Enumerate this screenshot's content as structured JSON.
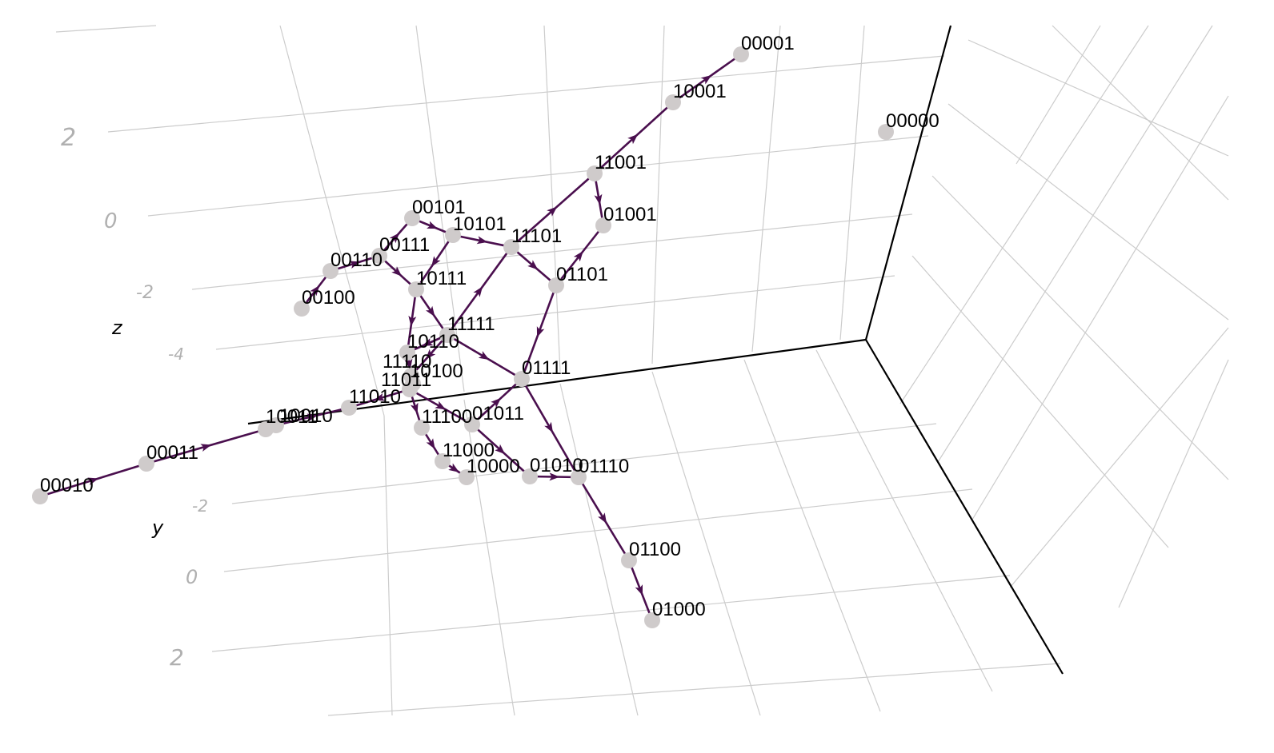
{
  "chart_data": {
    "type": "3d-network",
    "axes": {
      "z": {
        "label": "z",
        "ticks": [
          "2",
          "0",
          "-2",
          "-4"
        ]
      },
      "y": {
        "label": "y",
        "ticks": [
          "-2",
          "0",
          "2"
        ]
      }
    },
    "colors": {
      "edge": "#4a0f4e",
      "node": "#cfcbcb",
      "grid": "#cccccc",
      "axis": "#000000",
      "tick": "#b0b0b0"
    },
    "nodes": [
      "00001",
      "10001",
      "00000",
      "11001",
      "01001",
      "00101",
      "10101",
      "11101",
      "00111",
      "00110",
      "10111",
      "01101",
      "00100",
      "11111",
      "10110",
      "01111",
      "11011",
      "11110",
      "10100",
      "11010",
      "10010",
      "00110b",
      "00011",
      "00010",
      "11100",
      "01011",
      "11000",
      "10000",
      "01010",
      "01110",
      "01100",
      "01000"
    ],
    "node_labels": {
      "00001": "00001",
      "10001": "10001",
      "00000": "00000",
      "11001": "11001",
      "01001": "01001",
      "00101": "00101",
      "10101": "10101",
      "11101": "11101",
      "00111": "00111",
      "00110": "00110",
      "10111": "10111",
      "01101": "01101",
      "00100": "00100",
      "11111": "11111",
      "10110": "10110",
      "01111": "01111",
      "11011": "11011",
      "11110": "11110",
      "10100": "10100",
      "11010": "11010",
      "10010": "10010",
      "00110b": "10011",
      "00011": "00011",
      "00010": "00010",
      "11100": "11100",
      "01011": "01011",
      "11000": "11000",
      "10000": "10000",
      "01010": "01010",
      "01110": "01110",
      "01100": "01100",
      "01000": "01000"
    },
    "edges": [
      [
        "10001",
        "00001"
      ],
      [
        "11001",
        "10001"
      ],
      [
        "11101",
        "11001"
      ],
      [
        "11001",
        "01001"
      ],
      [
        "01101",
        "01001"
      ],
      [
        "00101",
        "10101"
      ],
      [
        "10101",
        "11101"
      ],
      [
        "11101",
        "01101"
      ],
      [
        "00111",
        "00101"
      ],
      [
        "00110",
        "00111"
      ],
      [
        "00100",
        "00110"
      ],
      [
        "00111",
        "10111"
      ],
      [
        "10101",
        "10111"
      ],
      [
        "10111",
        "11111"
      ],
      [
        "11111",
        "11101"
      ],
      [
        "10111",
        "10110"
      ],
      [
        "11111",
        "10110"
      ],
      [
        "11111",
        "01111"
      ],
      [
        "01101",
        "01111"
      ],
      [
        "11111",
        "11110"
      ],
      [
        "10110",
        "11110"
      ],
      [
        "11110",
        "10100"
      ],
      [
        "11011",
        "11010"
      ],
      [
        "10010",
        "11010"
      ],
      [
        "00110b",
        "10010"
      ],
      [
        "00011",
        "00110b"
      ],
      [
        "00010",
        "00011"
      ],
      [
        "11011",
        "11100"
      ],
      [
        "11100",
        "11000"
      ],
      [
        "11000",
        "10000"
      ],
      [
        "11011",
        "01011"
      ],
      [
        "01011",
        "01111"
      ],
      [
        "01010",
        "01110"
      ],
      [
        "01111",
        "01110"
      ],
      [
        "01011",
        "01010"
      ],
      [
        "01110",
        "01100"
      ],
      [
        "01100",
        "01000"
      ]
    ]
  }
}
